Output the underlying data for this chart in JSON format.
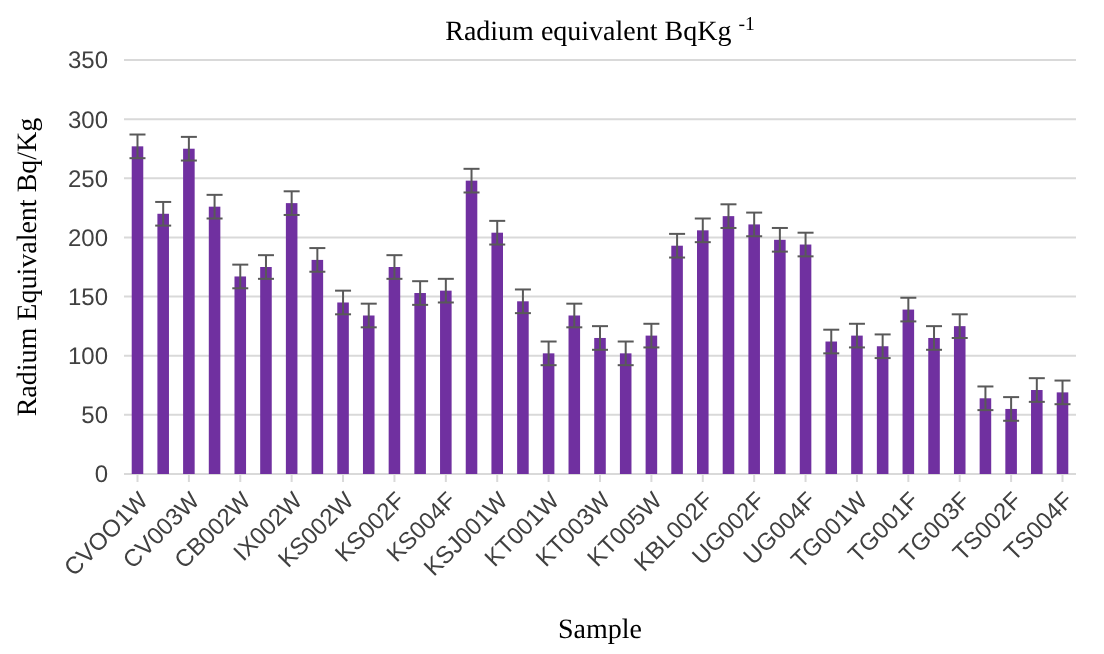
{
  "chart_data": {
    "type": "bar",
    "title": "Radium equivalent BqKg $^{-1}$",
    "xlabel": "Sample",
    "ylabel": "Radium Equivalent Bq/Kg",
    "categories": [
      "CVOO1W",
      null,
      "CV003W",
      null,
      "CB002W",
      null,
      "IX002W",
      null,
      "KS002W",
      null,
      "KS002F",
      null,
      "KS004F",
      null,
      "KSJ001W",
      null,
      "KT001W",
      null,
      "KT003W",
      null,
      "KT005W",
      null,
      "KBL002F",
      null,
      "UG002F",
      null,
      "UG004F",
      null,
      "TG001W",
      null,
      "TG001F",
      null,
      "TG003F",
      null,
      "TS002F",
      null,
      "TS004F"
    ],
    "values": [
      277,
      220,
      275,
      226,
      167,
      175,
      229,
      181,
      145,
      134,
      175,
      153,
      155,
      248,
      204,
      146,
      102,
      134,
      115,
      102,
      117,
      193,
      206,
      218,
      211,
      198,
      194,
      112,
      117,
      108,
      139,
      115,
      125,
      64,
      55,
      71,
      69
    ],
    "errors": [
      10,
      10,
      10,
      10,
      10,
      10,
      10,
      10,
      10,
      10,
      10,
      10,
      10,
      10,
      10,
      10,
      10,
      10,
      10,
      10,
      10,
      10,
      10,
      10,
      10,
      10,
      10,
      10,
      10,
      10,
      10,
      10,
      10,
      10,
      10,
      10,
      10
    ],
    "color": "#7030a0",
    "ylim": [
      0,
      350
    ],
    "yticks": [
      0,
      50,
      100,
      150,
      200,
      250,
      300,
      350
    ],
    "grid": "y"
  }
}
